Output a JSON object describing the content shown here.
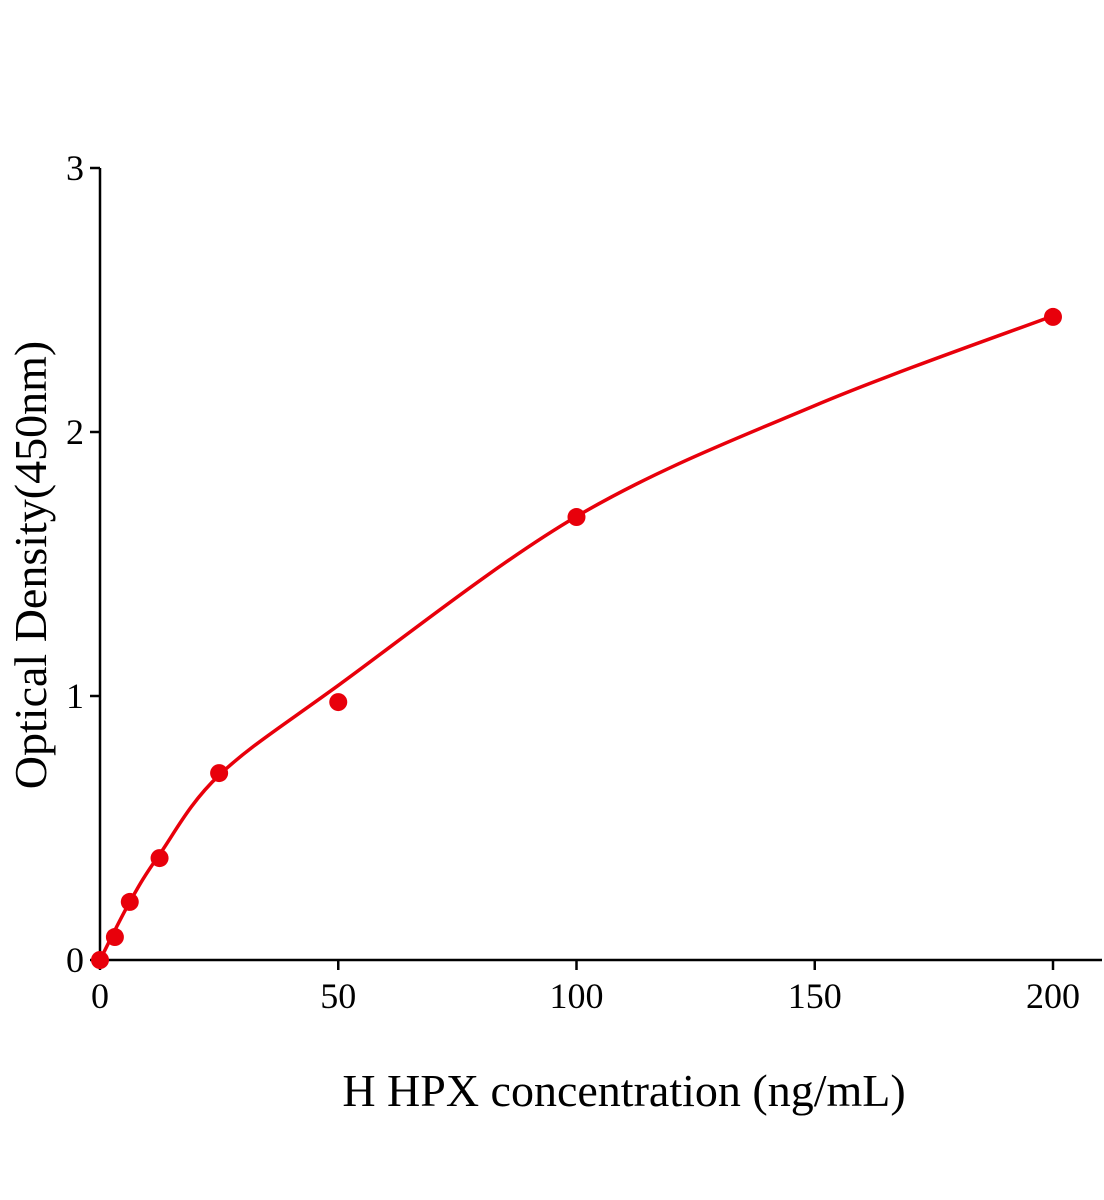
{
  "chart_data": {
    "type": "scatter",
    "xlabel": "H HPX concentration (ng/mL)",
    "ylabel": "Optical Density(450nm)",
    "xlim": [
      0,
      210
    ],
    "ylim": [
      0,
      3
    ],
    "x_ticks": [
      "0",
      "50",
      "100",
      "150",
      "200"
    ],
    "y_ticks": [
      "0",
      "1",
      "2",
      "3"
    ],
    "grid": false,
    "color": "#e8000b",
    "points": [
      {
        "x": 0,
        "y": 0.0
      },
      {
        "x": 3.125,
        "y": 0.087
      },
      {
        "x": 6.25,
        "y": 0.22
      },
      {
        "x": 12.5,
        "y": 0.386
      },
      {
        "x": 25,
        "y": 0.708
      },
      {
        "x": 50,
        "y": 0.977
      },
      {
        "x": 100,
        "y": 1.678
      },
      {
        "x": 200,
        "y": 2.436
      }
    ],
    "fit_curve": [
      {
        "x": 0,
        "y": 0.0
      },
      {
        "x": 6.25,
        "y": 0.22
      },
      {
        "x": 12.5,
        "y": 0.4
      },
      {
        "x": 25,
        "y": 0.7
      },
      {
        "x": 50,
        "y": 1.04
      },
      {
        "x": 100,
        "y": 1.68
      },
      {
        "x": 150,
        "y": 2.1
      },
      {
        "x": 200,
        "y": 2.44
      }
    ]
  }
}
